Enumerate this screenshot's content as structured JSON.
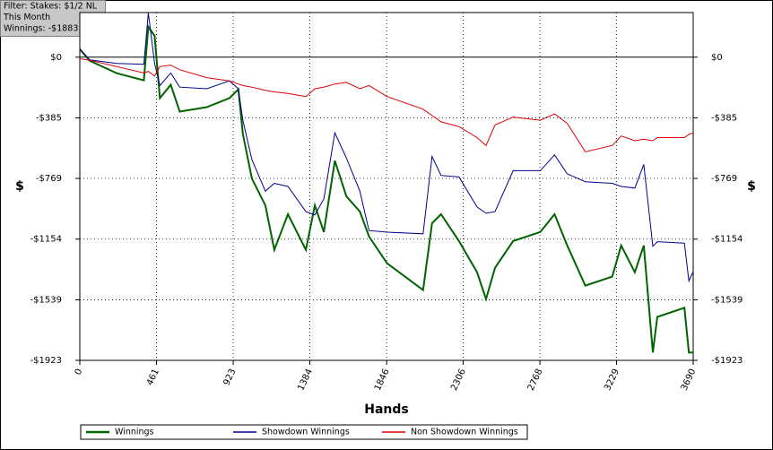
{
  "chart_data": {
    "type": "line",
    "annotations": [
      "Filter: Stakes: $1/2 NL",
      "This Month",
      "Winnings: -$1883.19"
    ],
    "xlabel": "Hands",
    "ylabel": "$",
    "x": [
      0,
      60,
      222,
      385,
      412,
      450,
      482,
      547,
      601,
      764,
      900,
      954,
      981,
      1035,
      1116,
      1170,
      1252,
      1360,
      1414,
      1468,
      1534,
      1604,
      1685,
      1740,
      1848,
      2065,
      2119,
      2173,
      2281,
      2390,
      2444,
      2498,
      2607,
      2770,
      2856,
      2932,
      3041,
      3203,
      3257,
      3339,
      3393,
      3447,
      3474,
      3637,
      3664,
      3690
    ],
    "series": [
      {
        "name": "Winnings",
        "color": "#006400",
        "width": 2,
        "values": [
          51,
          -23,
          -102,
          -147,
          192,
          136,
          -260,
          -175,
          -345,
          -317,
          -260,
          -204,
          -487,
          -770,
          -940,
          -1222,
          -996,
          -1222,
          -940,
          -1109,
          -657,
          -883,
          -979,
          -1137,
          -1307,
          -1477,
          -1053,
          -996,
          -1166,
          -1364,
          -1534,
          -1336,
          -1166,
          -1109,
          -996,
          -1194,
          -1449,
          -1392,
          -1194,
          -1364,
          -1194,
          -1873,
          -1647,
          -1590,
          -1873,
          -1873
        ]
      },
      {
        "name": "Showdown Winnings",
        "color": "#00008b",
        "width": 1,
        "values": [
          51,
          -17,
          -40,
          -45,
          280,
          -40,
          -180,
          -100,
          -190,
          -200,
          -150,
          -200,
          -400,
          -650,
          -850,
          -800,
          -820,
          -980,
          -1000,
          -900,
          -480,
          -640,
          -850,
          -1100,
          -1110,
          -1120,
          -630,
          -750,
          -760,
          -950,
          -990,
          -980,
          -720,
          -720,
          -620,
          -740,
          -790,
          -800,
          -820,
          -830,
          -680,
          -1200,
          -1170,
          -1180,
          -1420,
          -1360
        ]
      },
      {
        "name": "Non Showdown Winnings",
        "color": "#dd0000",
        "width": 1,
        "values": [
          -10,
          -20,
          -60,
          -100,
          -90,
          -120,
          -60,
          -50,
          -80,
          -130,
          -150,
          -170,
          -180,
          -190,
          -210,
          -220,
          -230,
          -250,
          -200,
          -190,
          -170,
          -160,
          -200,
          -180,
          -250,
          -330,
          -370,
          -410,
          -440,
          -510,
          -560,
          -430,
          -380,
          -400,
          -360,
          -420,
          -600,
          -560,
          -500,
          -530,
          -520,
          -530,
          -510,
          -510,
          -490,
          -480
        ]
      }
    ],
    "xlim": [
      0,
      3690
    ],
    "xticks": [
      0,
      461,
      923,
      1384,
      1846,
      2306,
      2768,
      3229,
      3690
    ],
    "ylim": [
      -1923,
      283
    ],
    "yticks": [
      {
        "value": 0,
        "label": "$0"
      },
      {
        "value": -385,
        "label": "-$385"
      },
      {
        "value": -769,
        "label": "-$769"
      },
      {
        "value": -1154,
        "label": "-$1154"
      },
      {
        "value": -1539,
        "label": "-$1539"
      },
      {
        "value": -1923,
        "label": "-$1923"
      }
    ],
    "grid": true
  }
}
